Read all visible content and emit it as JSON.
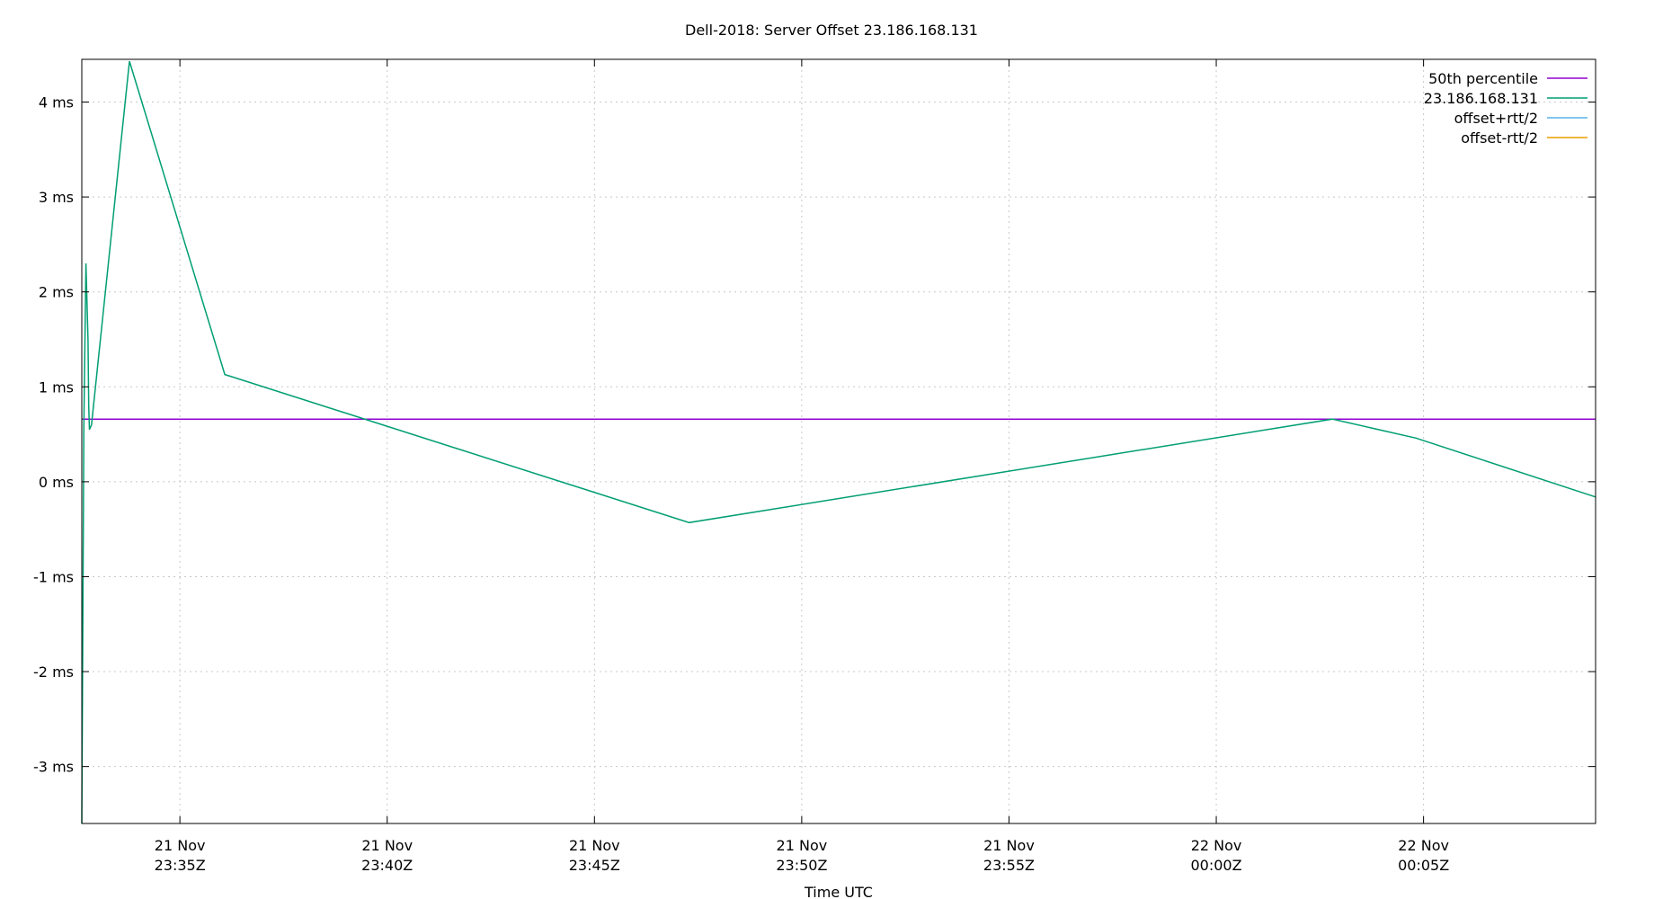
{
  "chart_data": {
    "type": "line",
    "title": "Dell-2018: Server Offset 23.186.168.131",
    "xlabel": "Time UTC",
    "ylabel": "",
    "ylim": [
      -3.6,
      4.45
    ],
    "xlim": [
      "2018-11-21T23:32:38Z",
      "2018-11-22T00:09:09Z"
    ],
    "yticks": [
      -3,
      -2,
      -1,
      0,
      1,
      2,
      3,
      4
    ],
    "ytick_labels": [
      "-3 ms",
      "-2 ms",
      "-1 ms",
      "0 ms",
      "1 ms",
      "2 ms",
      "3 ms",
      "4 ms"
    ],
    "xticks": [
      "2018-11-21T23:35:00Z",
      "2018-11-21T23:40:00Z",
      "2018-11-21T23:45:00Z",
      "2018-11-21T23:50:00Z",
      "2018-11-21T23:55:00Z",
      "2018-11-22T00:00:00Z",
      "2018-11-22T00:05:00Z"
    ],
    "xtick_labels": [
      [
        "21 Nov",
        "23:35Z"
      ],
      [
        "21 Nov",
        "23:40Z"
      ],
      [
        "21 Nov",
        "23:45Z"
      ],
      [
        "21 Nov",
        "23:50Z"
      ],
      [
        "21 Nov",
        "23:55Z"
      ],
      [
        "22 Nov",
        "00:00Z"
      ],
      [
        "22 Nov",
        "00:05Z"
      ]
    ],
    "grid": true,
    "legend_position": "top-right",
    "series": [
      {
        "name": "50th percentile",
        "color": "#9400d3",
        "x": [
          "2018-11-21T23:32:38Z",
          "2018-11-22T00:09:09Z"
        ],
        "y": [
          0.66,
          0.66
        ]
      },
      {
        "name": "23.186.168.131",
        "color": "#009e73",
        "x": [
          "2018-11-21T23:32:38Z",
          "2018-11-21T23:32:41Z",
          "2018-11-21T23:32:44Z",
          "2018-11-21T23:32:47Z",
          "2018-11-21T23:32:48Z",
          "2018-11-21T23:32:49Z",
          "2018-11-21T23:32:52Z",
          "2018-11-21T23:33:47Z",
          "2018-11-21T23:36:05Z",
          "2018-11-21T23:47:17Z",
          "2018-11-22T00:02:48Z",
          "2018-11-22T00:04:49Z",
          "2018-11-22T00:09:09Z"
        ],
        "y": [
          -3.6,
          0.6,
          2.3,
          1.5,
          0.8,
          0.55,
          0.6,
          4.43,
          1.13,
          -0.43,
          0.66,
          0.46,
          -0.16
        ]
      },
      {
        "name": "offset+rtt/2",
        "color": "#56b4e9",
        "x": [],
        "y": []
      },
      {
        "name": "offset-rtt/2",
        "color": "#e69f00",
        "x": [],
        "y": []
      }
    ]
  }
}
